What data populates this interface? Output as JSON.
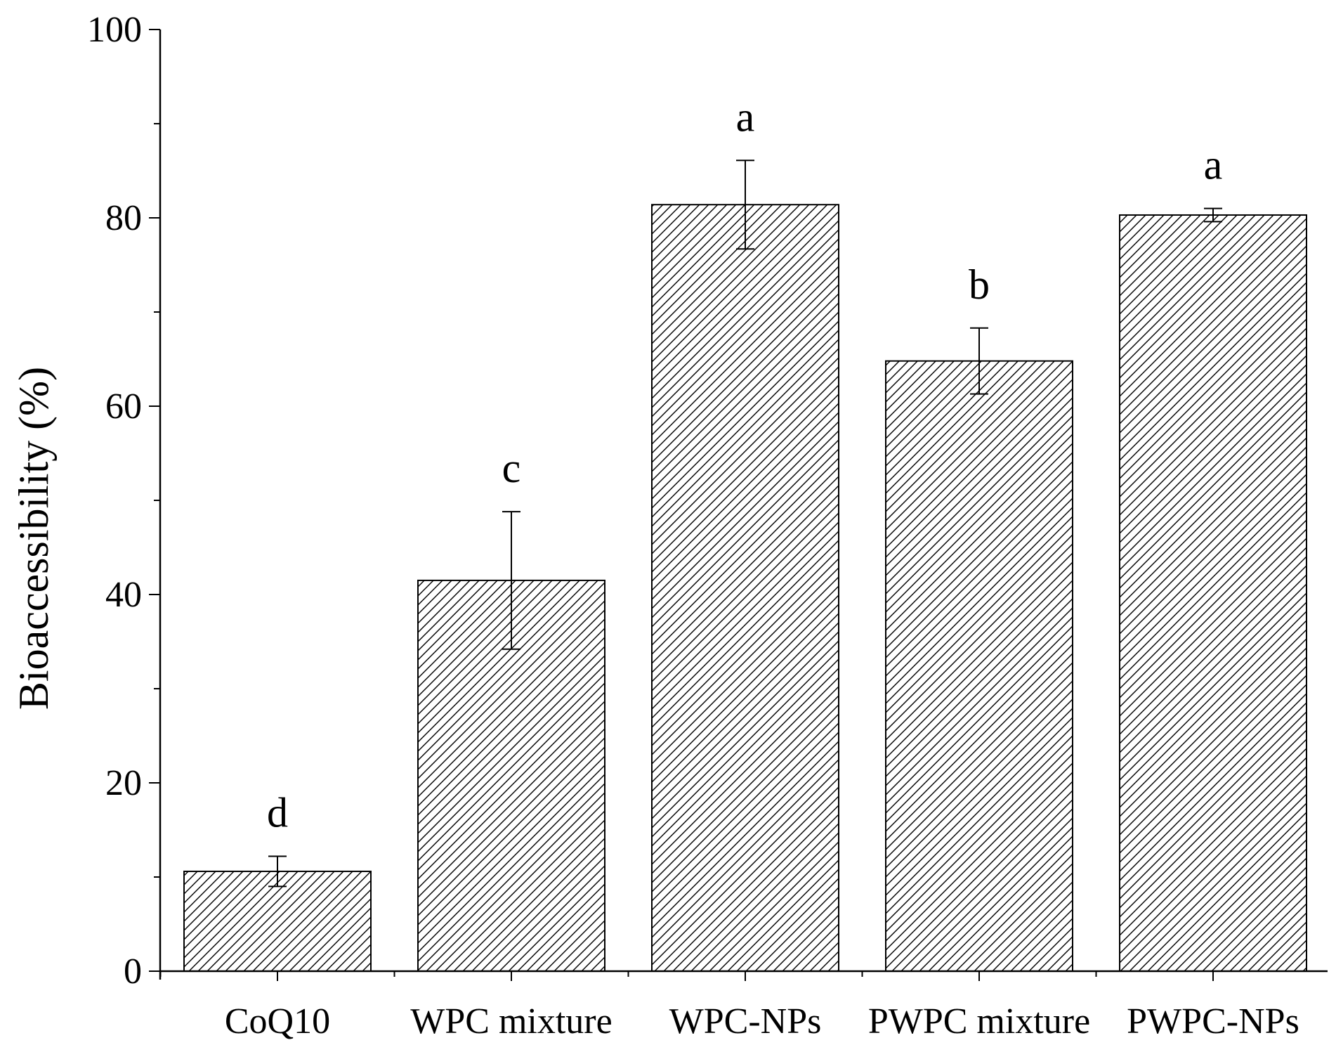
{
  "chart_data": {
    "type": "bar",
    "ylabel": "Bioaccessibility (%)",
    "xlabel": "",
    "ylim": [
      0,
      100
    ],
    "yticks": [
      0,
      20,
      40,
      60,
      80,
      100
    ],
    "yminor_step": 10,
    "grid": false,
    "categories": [
      "CoQ10",
      "WPC mixture",
      "WPC-NPs",
      "PWPC mixture",
      "PWPC-NPs"
    ],
    "values": [
      10.6,
      41.5,
      81.4,
      64.8,
      80.3
    ],
    "errors": [
      1.6,
      7.3,
      4.7,
      3.5,
      0.7
    ],
    "significance_letters": [
      "d",
      "c",
      "a",
      "b",
      "a"
    ],
    "bar_fill": "hatched",
    "colors": {
      "bar_stroke": "#000000",
      "hatch": "#000000",
      "background": "#ffffff"
    }
  }
}
